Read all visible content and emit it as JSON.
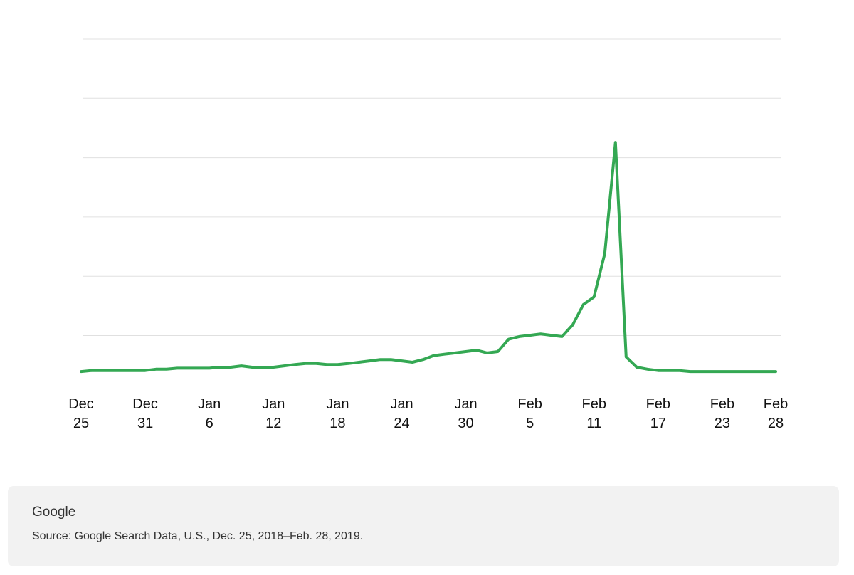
{
  "chart_data": {
    "type": "line",
    "title": "",
    "xlabel": "",
    "ylabel": "",
    "x_tick_labels": [
      [
        "Dec",
        "25"
      ],
      [
        "Dec",
        "31"
      ],
      [
        "Jan",
        "6"
      ],
      [
        "Jan",
        "12"
      ],
      [
        "Jan",
        "18"
      ],
      [
        "Jan",
        "24"
      ],
      [
        "Jan",
        "30"
      ],
      [
        "Feb",
        "5"
      ],
      [
        "Feb",
        "11"
      ],
      [
        "Feb",
        "17"
      ],
      [
        "Feb",
        "23"
      ],
      [
        "Feb",
        "28"
      ]
    ],
    "x_tick_dates": [
      "2018-12-25",
      "2018-12-31",
      "2019-01-06",
      "2019-01-12",
      "2019-01-18",
      "2019-01-24",
      "2019-01-30",
      "2019-02-05",
      "2019-02-11",
      "2019-02-17",
      "2019-02-23",
      "2019-02-28"
    ],
    "x_range": [
      "2018-12-25",
      "2019-02-28"
    ],
    "y_tick_labels_shown": false,
    "y_gridlines": 6,
    "y_range": [
      0,
      100
    ],
    "grid": true,
    "series": [
      {
        "color": "#34a853",
        "x": [
          "2018-12-25",
          "2018-12-26",
          "2018-12-27",
          "2018-12-28",
          "2018-12-29",
          "2018-12-30",
          "2018-12-31",
          "2019-01-01",
          "2019-01-02",
          "2019-01-03",
          "2019-01-04",
          "2019-01-05",
          "2019-01-06",
          "2019-01-07",
          "2019-01-08",
          "2019-01-09",
          "2019-01-10",
          "2019-01-11",
          "2019-01-12",
          "2019-01-13",
          "2019-01-14",
          "2019-01-15",
          "2019-01-16",
          "2019-01-17",
          "2019-01-18",
          "2019-01-19",
          "2019-01-20",
          "2019-01-21",
          "2019-01-22",
          "2019-01-23",
          "2019-01-24",
          "2019-01-25",
          "2019-01-26",
          "2019-01-27",
          "2019-01-28",
          "2019-01-29",
          "2019-01-30",
          "2019-01-31",
          "2019-02-01",
          "2019-02-02",
          "2019-02-03",
          "2019-02-04",
          "2019-02-05",
          "2019-02-06",
          "2019-02-07",
          "2019-02-08",
          "2019-02-09",
          "2019-02-10",
          "2019-02-11",
          "2019-02-12",
          "2019-02-13",
          "2019-02-14",
          "2019-02-15",
          "2019-02-16",
          "2019-02-17",
          "2019-02-18",
          "2019-02-19",
          "2019-02-20",
          "2019-02-21",
          "2019-02-22",
          "2019-02-23",
          "2019-02-24",
          "2019-02-25",
          "2019-02-26",
          "2019-02-27",
          "2019-02-28"
        ],
        "values": [
          0.2,
          0.5,
          0.5,
          0.5,
          0.5,
          0.5,
          0.5,
          0.9,
          0.9,
          1.2,
          1.2,
          1.2,
          1.2,
          1.5,
          1.5,
          1.9,
          1.5,
          1.5,
          1.5,
          1.9,
          2.3,
          2.6,
          2.6,
          2.3,
          2.3,
          2.6,
          3.0,
          3.4,
          3.8,
          3.8,
          3.4,
          3.0,
          3.8,
          5.0,
          5.4,
          5.8,
          6.2,
          6.6,
          5.8,
          6.2,
          9.9,
          10.7,
          11.1,
          11.5,
          11.1,
          10.7,
          14.2,
          20.3,
          22.6,
          35.6,
          69.0,
          4.6,
          1.5,
          0.9,
          0.5,
          0.5,
          0.5,
          0.2,
          0.2,
          0.2,
          0.2,
          0.2,
          0.2,
          0.2,
          0.2,
          0.2
        ]
      }
    ]
  },
  "footer": {
    "brand": "Google",
    "source": "Source: Google Search Data, U.S., Dec. 25, 2018–Feb. 28, 2019."
  },
  "colors": {
    "line": "#34a853",
    "gridline": "#e0e0e0",
    "footer_bg": "#f2f2f2"
  }
}
